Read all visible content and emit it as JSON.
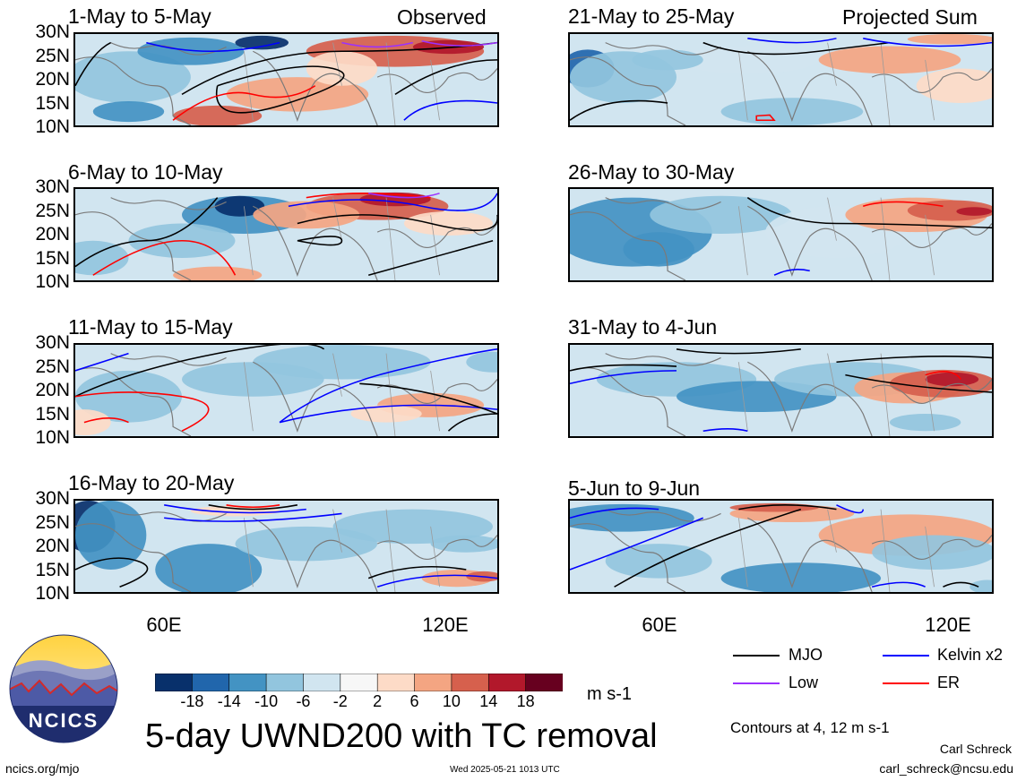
{
  "panels": [
    {
      "title": "1-May to 5-May",
      "tag": "Observed"
    },
    {
      "title": "21-May to 25-May",
      "tag": "Projected Sum"
    },
    {
      "title": "6-May to 10-May",
      "tag": ""
    },
    {
      "title": "26-May to 30-May",
      "tag": ""
    },
    {
      "title": "11-May to 15-May",
      "tag": ""
    },
    {
      "title": "31-May to 4-Jun",
      "tag": ""
    },
    {
      "title": "16-May to 20-May",
      "tag": ""
    },
    {
      "title": "5-Jun to 9-Jun",
      "tag": ""
    }
  ],
  "lat_ticks": [
    "30N",
    "25N",
    "20N",
    "15N",
    "10N"
  ],
  "lon_ticks": [
    "60E",
    "120E"
  ],
  "colorbar": {
    "labels": [
      "-18",
      "-14",
      "-10",
      "-6",
      "-2",
      "2",
      "6",
      "10",
      "14",
      "18"
    ],
    "colors": [
      "#08306b",
      "#2166ac",
      "#4393c3",
      "#92c5de",
      "#d1e5f0",
      "#f7f7f7",
      "#fddbc7",
      "#f4a582",
      "#d6604d",
      "#b2182b",
      "#67001f"
    ],
    "units": "m s-1"
  },
  "legend": {
    "items": [
      {
        "label": "MJO",
        "color": "#000000"
      },
      {
        "label": "Kelvin x2",
        "color": "#0000ff"
      },
      {
        "label": "Low",
        "color": "#9b30ff"
      },
      {
        "label": "ER",
        "color": "#ff0000"
      }
    ],
    "contours_note": "Contours at 4, 12 m s-1"
  },
  "main_title": "5-day UWND200 with TC removal",
  "logo_text": "NCICS",
  "footer": {
    "url": "ncics.org/mjo",
    "timestamp": "Wed 2025-05-21 1013 UTC",
    "author": "Carl Schreck",
    "email": "carl_schreck@ncsu.edu"
  }
}
